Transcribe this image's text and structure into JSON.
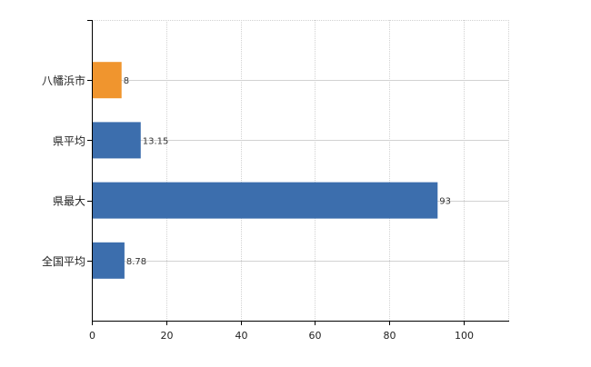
{
  "chart_data": {
    "type": "bar",
    "orientation": "horizontal",
    "categories": [
      "八幡浜市",
      "県平均",
      "県最大",
      "全国平均"
    ],
    "values": [
      8,
      13.15,
      93,
      8.78
    ],
    "data_labels": [
      "8",
      "13.15",
      "93",
      "8.78"
    ],
    "bar_colors": [
      "#F0952E",
      "#3C6EAD",
      "#3C6EAD",
      "#3C6EAD"
    ],
    "xlim": [
      0,
      112
    ],
    "x_ticks": [
      0,
      20,
      40,
      60,
      80,
      100
    ],
    "x_tick_labels": [
      "0",
      "20",
      "40",
      "60",
      "80",
      "100"
    ],
    "grid": true,
    "grid_style": "dotted",
    "title": "",
    "xlabel": "",
    "ylabel": ""
  }
}
